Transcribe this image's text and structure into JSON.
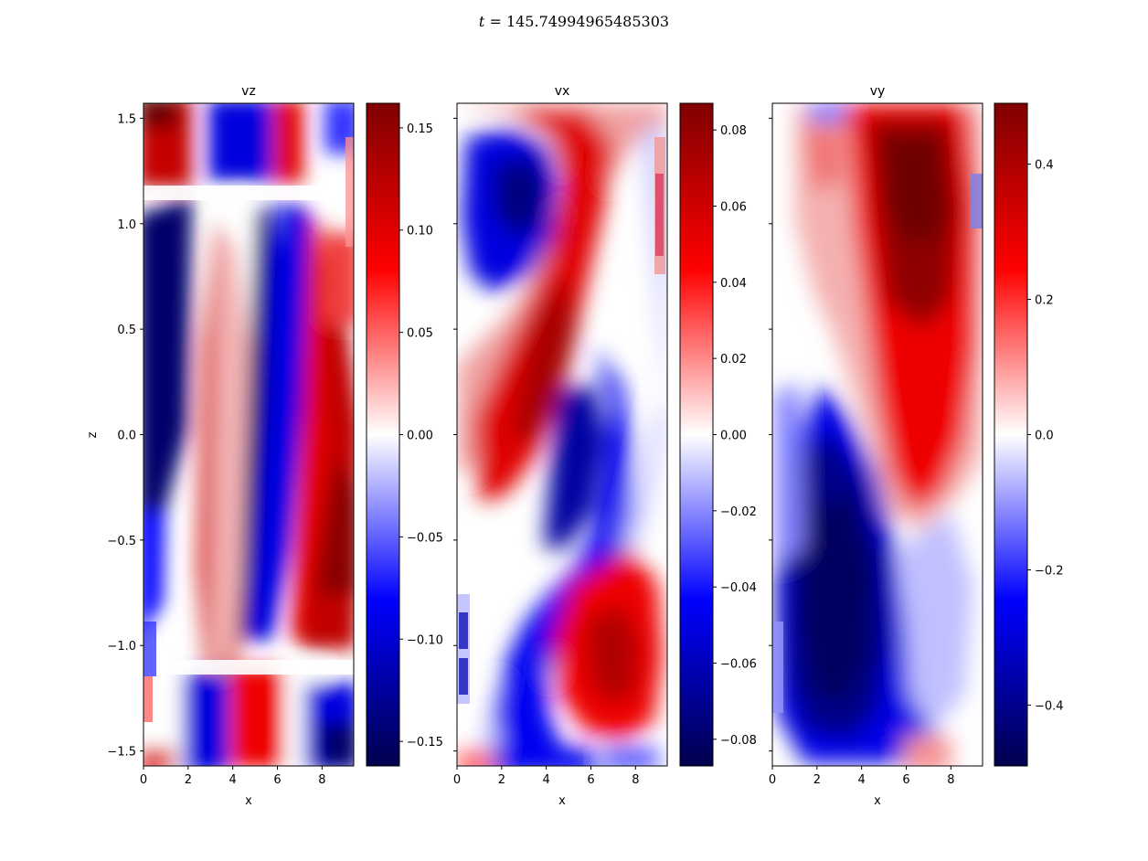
{
  "suptitle": {
    "var": "t",
    "eq": " = ",
    "value": "145.74994965485303"
  },
  "chart_data": [
    {
      "type": "heatmap",
      "title": "vz",
      "xlabel": "x",
      "ylabel": "z",
      "xlim": [
        0,
        9.42
      ],
      "ylim": [
        -1.571,
        1.571
      ],
      "xticks": [
        "0",
        "2",
        "4",
        "6",
        "8"
      ],
      "xtick_values": [
        0,
        2,
        4,
        6,
        8
      ],
      "yticks": [
        "−1.5",
        "−1.0",
        "−0.5",
        "0.0",
        "0.5",
        "1.0",
        "1.5"
      ],
      "ytick_values": [
        -1.5,
        -1.0,
        -0.5,
        0.0,
        0.5,
        1.0,
        1.5
      ],
      "colormap": "seismic",
      "colorbar": {
        "vmin": -0.162,
        "vmax": 0.162,
        "ticks": [
          "−0.15",
          "−0.10",
          "−0.05",
          "0.00",
          "0.05",
          "0.10",
          "0.15"
        ],
        "tick_values": [
          -0.15,
          -0.1,
          -0.05,
          0.0,
          0.05,
          0.1,
          0.15
        ]
      }
    },
    {
      "type": "heatmap",
      "title": "vx",
      "xlabel": "x",
      "ylabel": "",
      "xlim": [
        0,
        9.42
      ],
      "ylim": [
        -1.571,
        1.571
      ],
      "xticks": [
        "0",
        "2",
        "4",
        "6",
        "8"
      ],
      "xtick_values": [
        0,
        2,
        4,
        6,
        8
      ],
      "yticks": [],
      "ytick_values": [
        -1.5,
        -1.0,
        -0.5,
        0.0,
        0.5,
        1.0,
        1.5
      ],
      "colormap": "seismic",
      "colorbar": {
        "vmin": -0.087,
        "vmax": 0.087,
        "ticks": [
          "−0.08",
          "−0.06",
          "−0.04",
          "−0.02",
          "0.00",
          "0.02",
          "0.04",
          "0.06",
          "0.08"
        ],
        "tick_values": [
          -0.08,
          -0.06,
          -0.04,
          -0.02,
          0.0,
          0.02,
          0.04,
          0.06,
          0.08
        ]
      }
    },
    {
      "type": "heatmap",
      "title": "vy",
      "xlabel": "x",
      "ylabel": "",
      "xlim": [
        0,
        9.42
      ],
      "ylim": [
        -1.571,
        1.571
      ],
      "xticks": [
        "0",
        "2",
        "4",
        "6",
        "8"
      ],
      "xtick_values": [
        0,
        2,
        4,
        6,
        8
      ],
      "yticks": [],
      "ytick_values": [
        -1.5,
        -1.0,
        -0.5,
        0.0,
        0.5,
        1.0,
        1.5
      ],
      "colormap": "seismic",
      "colorbar": {
        "vmin": -0.49,
        "vmax": 0.49,
        "ticks": [
          "−0.4",
          "−0.2",
          "0.0",
          "0.2",
          "0.4"
        ],
        "tick_values": [
          -0.4,
          -0.2,
          0.0,
          0.2,
          0.4
        ]
      }
    }
  ]
}
